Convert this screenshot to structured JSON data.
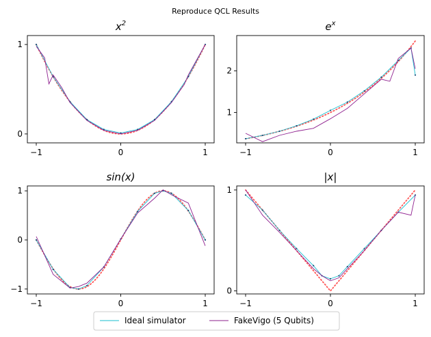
{
  "suptitle": "Reproduce QCL Results",
  "legend": {
    "placement": "bottom-center",
    "entries": [
      {
        "label": "Ideal simulator",
        "color": "#17becf"
      },
      {
        "label": "FakeVigo (5 Qubits)",
        "color": "#8e1f8e"
      }
    ]
  },
  "colors": {
    "target": "#ff5555",
    "ideal": "#17becf",
    "fakevigo": "#8e1f8e",
    "ideal_dots": "#1a4f7a"
  },
  "chart_data": [
    {
      "type": "line",
      "title": "x^2",
      "title_main": "x",
      "title_sup": "2",
      "xlim": [
        -1.0,
        1.0
      ],
      "ylim": [
        -0.1,
        1.1
      ],
      "xticks": [
        -1,
        0,
        1
      ],
      "xtick_labels": [
        "−1",
        "0",
        "1"
      ],
      "yticks": [
        0,
        1
      ],
      "ytick_labels": [
        "0",
        "1"
      ],
      "target": "square",
      "series": [
        {
          "name": "Ideal simulator",
          "x": [
            -1.0,
            -0.8,
            -0.6,
            -0.4,
            -0.2,
            0.0,
            0.2,
            0.4,
            0.6,
            0.8,
            1.0
          ],
          "values": [
            1.0,
            0.64,
            0.36,
            0.16,
            0.05,
            0.01,
            0.05,
            0.16,
            0.36,
            0.64,
            1.0
          ]
        },
        {
          "name": "FakeVigo (5 Qubits)",
          "x": [
            -1.0,
            -0.9,
            -0.85,
            -0.8,
            -0.7,
            -0.6,
            -0.4,
            -0.2,
            0.0,
            0.2,
            0.4,
            0.6,
            0.75,
            0.8,
            1.0
          ],
          "values": [
            0.98,
            0.85,
            0.56,
            0.66,
            0.52,
            0.35,
            0.15,
            0.04,
            0.0,
            0.04,
            0.15,
            0.35,
            0.55,
            0.66,
            1.0
          ]
        }
      ]
    },
    {
      "type": "line",
      "title": "e^x",
      "title_main": "e",
      "title_sup": "x",
      "xlim": [
        -1.0,
        1.0
      ],
      "ylim": [
        0.27,
        2.85
      ],
      "xticks": [
        -1,
        0,
        1
      ],
      "xtick_labels": [
        "−1",
        "0",
        "1"
      ],
      "yticks": [
        1,
        2
      ],
      "ytick_labels": [
        "1",
        "2"
      ],
      "target": "exp",
      "series": [
        {
          "name": "Ideal simulator",
          "x": [
            -1.0,
            -0.8,
            -0.6,
            -0.4,
            -0.2,
            0.0,
            0.2,
            0.4,
            0.6,
            0.8,
            0.95,
            1.0
          ],
          "values": [
            0.37,
            0.45,
            0.55,
            0.68,
            0.84,
            1.05,
            1.25,
            1.52,
            1.85,
            2.25,
            2.55,
            1.9
          ]
        },
        {
          "name": "FakeVigo (5 Qubits)",
          "x": [
            -1.0,
            -0.8,
            -0.6,
            -0.4,
            -0.2,
            0.0,
            0.2,
            0.4,
            0.6,
            0.7,
            0.8,
            0.95,
            1.0
          ],
          "values": [
            0.5,
            0.3,
            0.45,
            0.55,
            0.62,
            0.85,
            1.1,
            1.45,
            1.8,
            1.75,
            2.3,
            2.55,
            2.05
          ]
        }
      ]
    },
    {
      "type": "line",
      "title": "sin(x)",
      "title_main": "sin(x)",
      "title_sup": "",
      "xlim": [
        -1.0,
        1.0
      ],
      "ylim": [
        -1.1,
        1.1
      ],
      "xticks": [
        -1,
        0,
        1
      ],
      "xtick_labels": [
        "−1",
        "0",
        "1"
      ],
      "yticks": [
        -1,
        0,
        1
      ],
      "ytick_labels": [
        "−1",
        "0",
        "1"
      ],
      "target": "sin",
      "series": [
        {
          "name": "Ideal simulator",
          "x": [
            -1.0,
            -0.8,
            -0.6,
            -0.5,
            -0.4,
            -0.2,
            0.0,
            0.2,
            0.4,
            0.5,
            0.6,
            0.8,
            1.0
          ],
          "values": [
            0.0,
            -0.6,
            -0.97,
            -1.0,
            -0.93,
            -0.55,
            0.02,
            0.58,
            0.95,
            1.0,
            0.95,
            0.6,
            0.0
          ]
        },
        {
          "name": "FakeVigo (5 Qubits)",
          "x": [
            -1.0,
            -0.8,
            -0.6,
            -0.5,
            -0.4,
            -0.2,
            0.0,
            0.2,
            0.4,
            0.5,
            0.6,
            0.8,
            1.0
          ],
          "values": [
            0.07,
            -0.7,
            -0.98,
            -0.95,
            -0.88,
            -0.55,
            0.02,
            0.55,
            0.85,
            1.02,
            0.92,
            0.75,
            -0.12
          ]
        }
      ]
    },
    {
      "type": "line",
      "title": "|x|",
      "title_main": "|x|",
      "title_sup": "",
      "xlim": [
        -1.0,
        1.0
      ],
      "ylim": [
        -0.03,
        1.04
      ],
      "xticks": [
        -1,
        0,
        1
      ],
      "xtick_labels": [
        "−1",
        "0",
        "1"
      ],
      "yticks": [
        0,
        1
      ],
      "ytick_labels": [
        "0",
        "1"
      ],
      "target": "abs",
      "series": [
        {
          "name": "Ideal simulator",
          "x": [
            -1.0,
            -0.8,
            -0.6,
            -0.4,
            -0.2,
            -0.1,
            0.0,
            0.1,
            0.2,
            0.4,
            0.6,
            0.8,
            1.0
          ],
          "values": [
            0.95,
            0.8,
            0.6,
            0.42,
            0.25,
            0.15,
            0.12,
            0.15,
            0.24,
            0.42,
            0.6,
            0.78,
            0.95
          ]
        },
        {
          "name": "FakeVigo (5 Qubits)",
          "x": [
            -1.0,
            -0.8,
            -0.6,
            -0.4,
            -0.2,
            -0.1,
            0.0,
            0.1,
            0.2,
            0.4,
            0.6,
            0.8,
            0.95,
            1.0
          ],
          "values": [
            1.0,
            0.75,
            0.58,
            0.4,
            0.22,
            0.15,
            0.1,
            0.13,
            0.22,
            0.4,
            0.6,
            0.78,
            0.75,
            0.95
          ]
        }
      ]
    }
  ]
}
